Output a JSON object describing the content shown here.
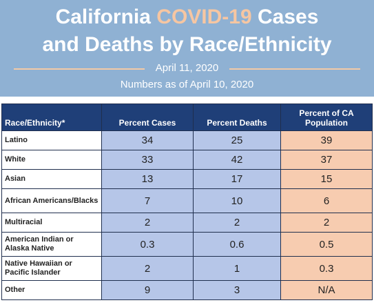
{
  "header": {
    "title_line1_part1": "California ",
    "title_line1_accent": "COVID-19",
    "title_line1_part2": " Cases",
    "title_line2": "and Deaths by Race/Ethnicity",
    "date": "April 11, 2020",
    "as_of": "Numbers as of April 10, 2020"
  },
  "colors": {
    "banner": "#8fb1d3",
    "accent": "#f6c6a2",
    "header_row": "#1f3f78",
    "blue_cells": "#b6c6e8",
    "peach_cells": "#f7ccb0"
  },
  "table": {
    "columns": [
      "Race/Ethnicity*",
      "Percent Cases",
      "Percent Deaths",
      "Percent of CA Population"
    ],
    "rows": [
      {
        "group": "Latino",
        "cases": "34",
        "deaths": "25",
        "population": "39"
      },
      {
        "group": "White",
        "cases": "33",
        "deaths": "42",
        "population": "37"
      },
      {
        "group": "Asian",
        "cases": "13",
        "deaths": "17",
        "population": "15"
      },
      {
        "group": "African Americans/Blacks",
        "cases": "7",
        "deaths": "10",
        "population": "6"
      },
      {
        "group": "Multiracial",
        "cases": "2",
        "deaths": "2",
        "population": "2"
      },
      {
        "group": "American Indian or Alaska Native",
        "cases": "0.3",
        "deaths": "0.6",
        "population": "0.5"
      },
      {
        "group": "Native Hawaiian or Pacific Islander",
        "cases": "2",
        "deaths": "1",
        "population": "0.3"
      },
      {
        "group": "Other",
        "cases": "9",
        "deaths": "3",
        "population": "N/A"
      }
    ]
  }
}
